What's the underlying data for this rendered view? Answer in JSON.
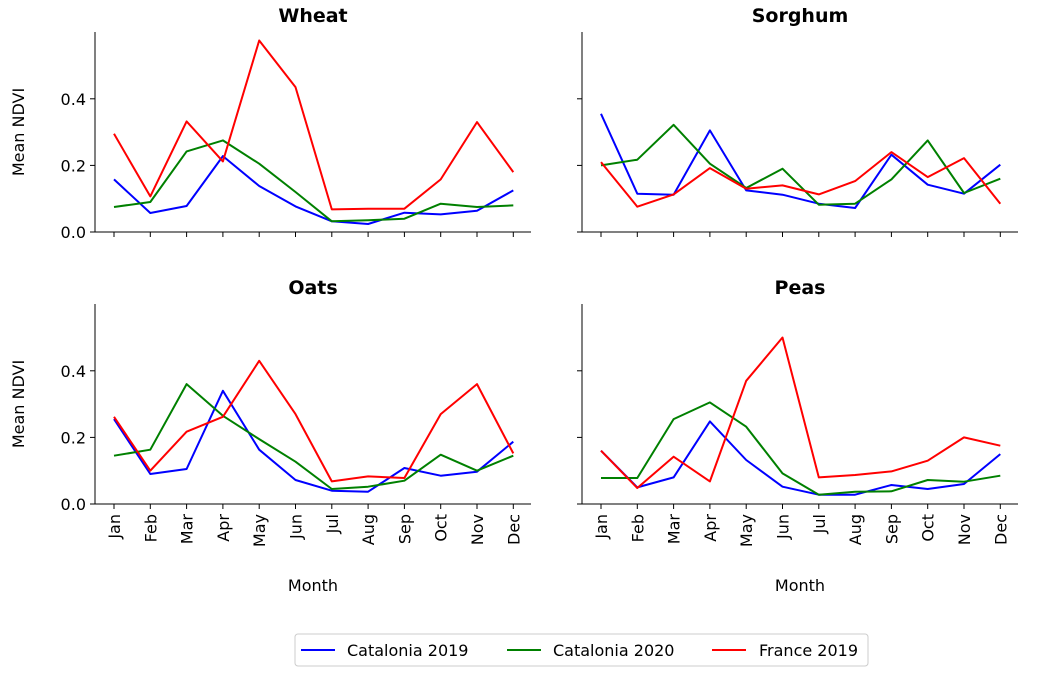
{
  "chart_data": {
    "type": "line",
    "legend_position": "bottom-center",
    "grid": false,
    "categories": [
      "Jan",
      "Feb",
      "Mar",
      "Apr",
      "May",
      "Jun",
      "Jul",
      "Aug",
      "Sep",
      "Oct",
      "Nov",
      "Dec"
    ],
    "ylim": [
      0,
      0.6
    ],
    "yticks": [
      "0.0",
      "0.2",
      "0.4"
    ],
    "ylabel": "Mean NDVI",
    "xlabel": "Month",
    "legend": [
      {
        "name": "Catalonia 2019",
        "color": "#0000ff"
      },
      {
        "name": "Catalonia 2020",
        "color": "#008000"
      },
      {
        "name": "France 2019",
        "color": "#ff0000"
      }
    ],
    "panels": [
      {
        "title": "Wheat",
        "series": [
          {
            "name": "Catalonia 2019",
            "values": [
              0.158,
              0.057,
              0.078,
              0.228,
              0.138,
              0.077,
              0.032,
              0.024,
              0.058,
              0.053,
              0.064,
              0.125
            ]
          },
          {
            "name": "Catalonia 2020",
            "values": [
              0.075,
              0.09,
              0.242,
              0.275,
              0.205,
              0.12,
              0.032,
              0.035,
              0.04,
              0.085,
              0.075,
              0.08
            ]
          },
          {
            "name": "France 2019",
            "values": [
              0.295,
              0.107,
              0.332,
              0.212,
              0.575,
              0.435,
              0.068,
              0.07,
              0.07,
              0.158,
              0.33,
              0.18
            ]
          }
        ]
      },
      {
        "title": "Sorghum",
        "series": [
          {
            "name": "Catalonia 2019",
            "values": [
              0.355,
              0.115,
              0.112,
              0.305,
              0.125,
              0.112,
              0.085,
              0.072,
              0.232,
              0.142,
              0.115,
              0.202
            ]
          },
          {
            "name": "Catalonia 2020",
            "values": [
              0.2,
              0.217,
              0.322,
              0.205,
              0.132,
              0.19,
              0.082,
              0.085,
              0.158,
              0.275,
              0.117,
              0.16
            ]
          },
          {
            "name": "France 2019",
            "values": [
              0.21,
              0.076,
              0.113,
              0.192,
              0.13,
              0.14,
              0.113,
              0.153,
              0.24,
              0.165,
              0.222,
              0.085
            ]
          }
        ]
      },
      {
        "title": "Oats",
        "series": [
          {
            "name": "Catalonia 2019",
            "values": [
              0.255,
              0.09,
              0.105,
              0.34,
              0.163,
              0.072,
              0.04,
              0.037,
              0.108,
              0.085,
              0.097,
              0.187
            ]
          },
          {
            "name": "Catalonia 2020",
            "values": [
              0.145,
              0.163,
              0.36,
              0.265,
              0.195,
              0.127,
              0.045,
              0.052,
              0.07,
              0.148,
              0.1,
              0.145
            ]
          },
          {
            "name": "France 2019",
            "values": [
              0.262,
              0.1,
              0.217,
              0.262,
              0.43,
              0.27,
              0.068,
              0.083,
              0.078,
              0.27,
              0.36,
              0.152
            ]
          }
        ]
      },
      {
        "title": "Peas",
        "series": [
          {
            "name": "Catalonia 2019",
            "values": [
              0.16,
              0.05,
              0.08,
              0.248,
              0.132,
              0.052,
              0.028,
              0.028,
              0.057,
              0.045,
              0.06,
              0.15
            ]
          },
          {
            "name": "Catalonia 2020",
            "values": [
              0.078,
              0.078,
              0.255,
              0.305,
              0.232,
              0.092,
              0.028,
              0.037,
              0.038,
              0.072,
              0.067,
              0.085
            ]
          },
          {
            "name": "France 2019",
            "values": [
              0.16,
              0.048,
              0.142,
              0.068,
              0.37,
              0.5,
              0.08,
              0.087,
              0.098,
              0.13,
              0.2,
              0.175
            ]
          }
        ]
      }
    ]
  }
}
